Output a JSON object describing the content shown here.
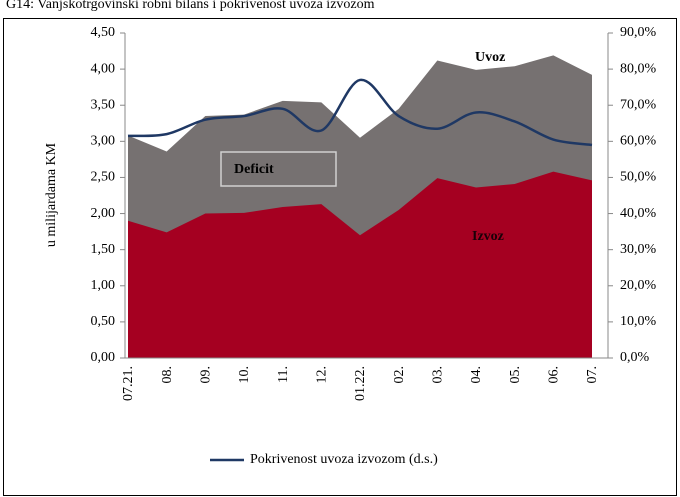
{
  "chart_data": {
    "type": "area",
    "title": "G14: Vanjskotrgovinski robni bilans i pokrivenost uvoza izvozom",
    "y_label": "u milijardama KM",
    "categories": [
      "07.21.",
      "08.",
      "09.",
      "10.",
      "11.",
      "12.",
      "01.22.",
      "02.",
      "03.",
      "04.",
      "05.",
      "06.",
      "07."
    ],
    "series": [
      {
        "name": "Uvoz",
        "color": "#767171",
        "values": [
          3.08,
          2.86,
          3.35,
          3.37,
          3.56,
          3.54,
          3.05,
          3.45,
          4.12,
          3.99,
          4.04,
          4.19,
          3.92
        ]
      },
      {
        "name": "Izvoz",
        "color": "#a50021",
        "values": [
          1.9,
          1.74,
          2.0,
          2.01,
          2.09,
          2.13,
          1.7,
          2.05,
          2.49,
          2.36,
          2.41,
          2.58,
          2.46
        ]
      },
      {
        "name": "Pokrivenost uvoza izvozom (d.s.)",
        "color": "#1f3864",
        "axis": "y2",
        "type": "line",
        "values": [
          61.5,
          62,
          66,
          67,
          69,
          63,
          77,
          67,
          63.5,
          68,
          65.5,
          60.5,
          59
        ]
      }
    ],
    "annotations": [
      "Deficit"
    ],
    "ylim": [
      0,
      4.5
    ],
    "yticks": [
      {
        "value": 0,
        "label": "0,00"
      },
      {
        "value": 0.5,
        "label": "0,50"
      },
      {
        "value": 1,
        "label": "1,00"
      },
      {
        "value": 1.5,
        "label": "1,50"
      },
      {
        "value": 2,
        "label": "2,00"
      },
      {
        "value": 2.5,
        "label": "2,50"
      },
      {
        "value": 3,
        "label": "3,00"
      },
      {
        "value": 3.5,
        "label": "3,50"
      },
      {
        "value": 4,
        "label": "4,00"
      },
      {
        "value": 4.5,
        "label": "4,50"
      }
    ],
    "y2lim": [
      0,
      90
    ],
    "y2ticks": [
      {
        "value": 0,
        "label": "0,0%"
      },
      {
        "value": 10,
        "label": "10,0%"
      },
      {
        "value": 20,
        "label": "20,0%"
      },
      {
        "value": 30,
        "label": "30,0%"
      },
      {
        "value": 40,
        "label": "40,0%"
      },
      {
        "value": 50,
        "label": "50,0%"
      },
      {
        "value": 60,
        "label": "60,0%"
      },
      {
        "value": 70,
        "label": "70,0%"
      },
      {
        "value": 80,
        "label": "80,0%"
      },
      {
        "value": 90,
        "label": "90,0%"
      }
    ],
    "legend": "bottom"
  }
}
